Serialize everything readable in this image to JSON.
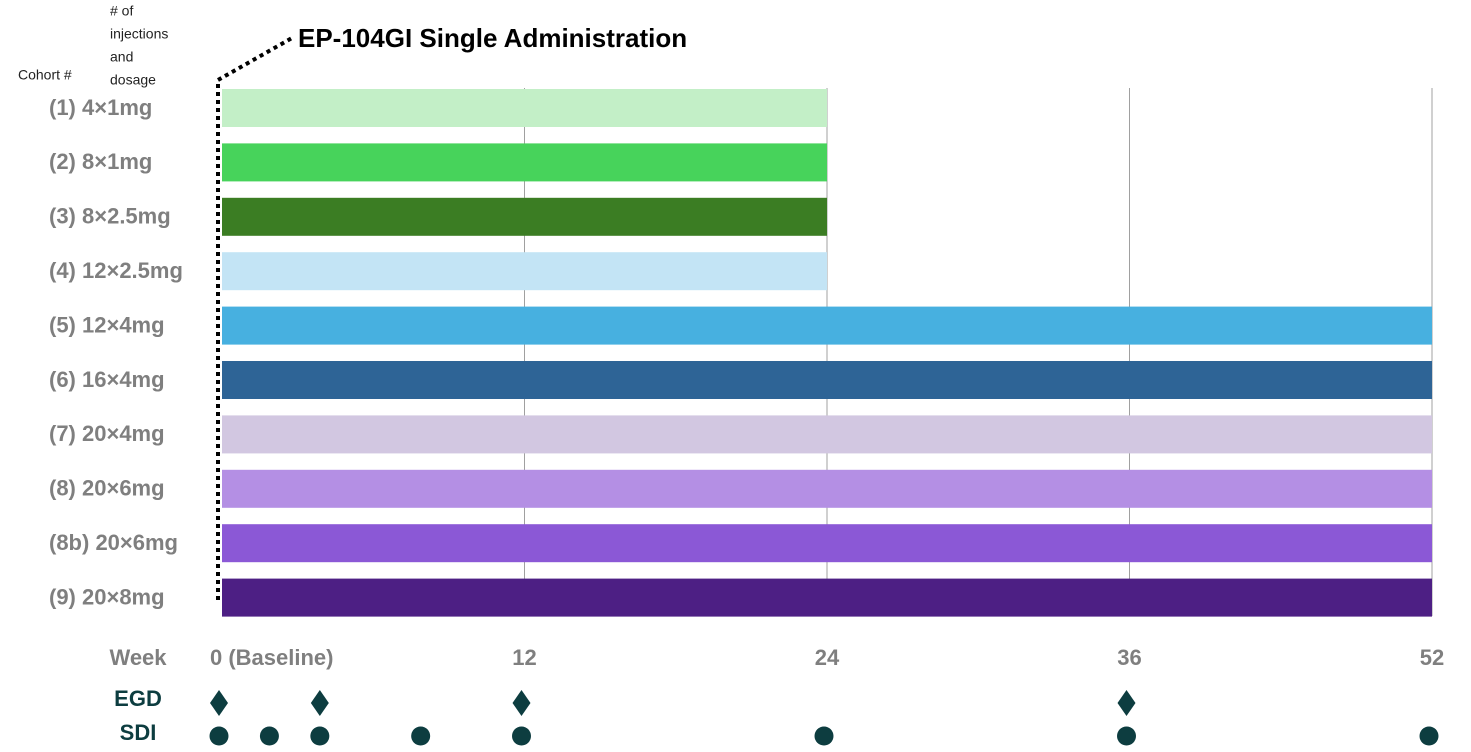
{
  "chart_data": {
    "type": "bar",
    "orientation": "horizontal",
    "title": "EP-104GI Single Administration",
    "y_header": "Cohort #",
    "dosage_header": [
      "# of",
      "injections",
      "and",
      "dosage"
    ],
    "x_label": "Week",
    "categories": [
      "(1)  4×1mg",
      "(2)  8×1mg",
      "(3)  8×2.5mg",
      "(4) 12×2.5mg",
      "(5) 12×4mg",
      "(6) 16×4mg",
      "(7) 20×4mg",
      "(8) 20×6mg",
      "(8b) 20×6mg",
      "(9) 20×8mg"
    ],
    "values": [
      24,
      24,
      24,
      24,
      52,
      52,
      52,
      52,
      52,
      52
    ],
    "colors": [
      "#c3efc7",
      "#47d35b",
      "#3b7d23",
      "#c3e4f5",
      "#47b0e0",
      "#2e6496",
      "#d2c7e1",
      "#b48fe4",
      "#8b58d6",
      "#4d1f84"
    ],
    "xlim": [
      0,
      52
    ],
    "xticks": [
      {
        "value": 0,
        "label": "0 (Baseline)"
      },
      12,
      24,
      36,
      52
    ],
    "grid": true,
    "markers": [
      {
        "name": "EGD",
        "shape": "diamond",
        "color": "#0d3d40",
        "x": [
          0,
          4,
          12,
          36
        ]
      },
      {
        "name": "SDI",
        "shape": "circle",
        "color": "#0d3d40",
        "x": [
          0,
          2,
          4,
          8,
          12,
          24,
          36,
          52
        ]
      }
    ]
  }
}
